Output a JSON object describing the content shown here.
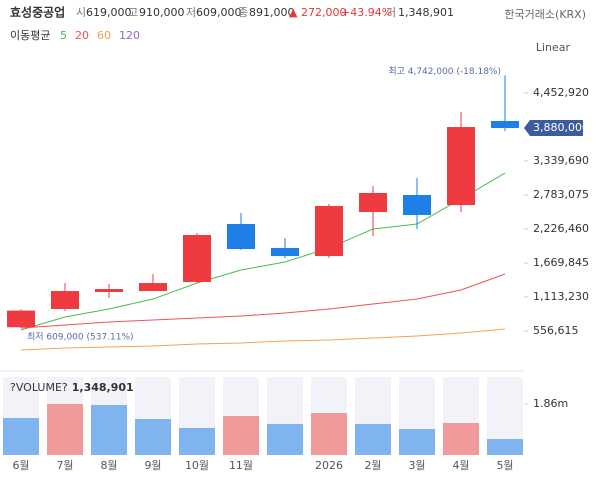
{
  "header": {
    "name": "효성중공업",
    "fields": [
      {
        "label": "시",
        "value": "619,000"
      },
      {
        "label": "고",
        "value": "910,000"
      },
      {
        "label": "저",
        "value": "609,000"
      },
      {
        "label": "종",
        "value": "891,000"
      }
    ],
    "change": "▲ 272,000",
    "change_pct": "+43.94%",
    "volume_label": "거",
    "volume": "1,348,901",
    "exchange": "한국거래소(KRX)",
    "scale": "Linear"
  },
  "chart_data": {
    "type": "candlestick",
    "categories": [
      "6월",
      "7월",
      "8월",
      "9월",
      "10월",
      "11월",
      null,
      "2026",
      "2월",
      "3월",
      "4월",
      "5월"
    ],
    "open": [
      619000,
      917000,
      1195000,
      1211000,
      1359000,
      2308000,
      1915000,
      1784000,
      2505000,
      2783000,
      2619000,
      3995000
    ],
    "high": [
      910000,
      1342000,
      1326000,
      1490000,
      2161000,
      2488000,
      2079000,
      2636000,
      2930000,
      3061000,
      4142000,
      4742000
    ],
    "low": [
      609000,
      884000,
      1097000,
      1211000,
      1342000,
      1883000,
      1752000,
      1752000,
      2112000,
      2226000,
      2505000,
      3831000
    ],
    "close": [
      891000,
      1211000,
      1244000,
      1342000,
      2128000,
      1899000,
      1784000,
      2603000,
      2816000,
      2456000,
      3896000,
      3880000
    ],
    "up_color": "#ef3b3f",
    "down_color": "#1e7fe6",
    "ylim": [
      0,
      5000000
    ],
    "yticks": [
      {
        "value": 556615,
        "label": "556,615"
      },
      {
        "value": 1113230,
        "label": "1,113,230"
      },
      {
        "value": 1669845,
        "label": "1,669,845"
      },
      {
        "value": 2226460,
        "label": "2,226,460"
      },
      {
        "value": 2783075,
        "label": "2,783,075"
      },
      {
        "value": 3339690,
        "label": "3,339,690"
      },
      {
        "value": 4452920,
        "label": "4,452,920"
      }
    ],
    "last_price": {
      "value": 3880000,
      "label": "3,880,000"
    },
    "high_note": "최고 4,742,000 (-18.18%)",
    "low_note": "최저 609,000 (537.11%)",
    "ma_title": "이동평균",
    "moving_averages": [
      {
        "name": "5",
        "color": "#4cbb4c",
        "values": [
          573000,
          786000,
          917000,
          1080000,
          1342000,
          1555000,
          1686000,
          1915000,
          2226000,
          2308000,
          2718000,
          3143000
        ]
      },
      {
        "name": "20",
        "color": "#f0505a",
        "values": [
          606000,
          655000,
          704000,
          737000,
          769000,
          802000,
          851000,
          917000,
          999000,
          1080000,
          1228000,
          1490000
        ]
      },
      {
        "name": "60",
        "color": "#f5a050",
        "values": [
          246000,
          278000,
          295000,
          311000,
          344000,
          360000,
          393000,
          409000,
          442000,
          475000,
          524000,
          589000
        ]
      },
      {
        "name": "120",
        "color": "#9a5fd0",
        "values": [
          null,
          null,
          null,
          null,
          null,
          null,
          null,
          null,
          null,
          null,
          null,
          null
        ]
      }
    ],
    "volume": {
      "title": "?VOLUME?",
      "last": "1,348,901",
      "values": [
        1349000,
        1860000,
        1824000,
        1313000,
        985000,
        1422000,
        1131000,
        1532000,
        1131000,
        948000,
        1167000,
        584000
      ],
      "colors": [
        "#7fb4ee",
        "#f09a9c",
        "#7fb4ee",
        "#7fb4ee",
        "#7fb4ee",
        "#f09a9c",
        "#7fb4ee",
        "#f09a9c",
        "#7fb4ee",
        "#7fb4ee",
        "#f09a9c",
        "#7fb4ee"
      ],
      "ylim": [
        0,
        2845000
      ],
      "yticks": [
        {
          "value": 1860000,
          "label": "1.86m"
        }
      ]
    }
  }
}
